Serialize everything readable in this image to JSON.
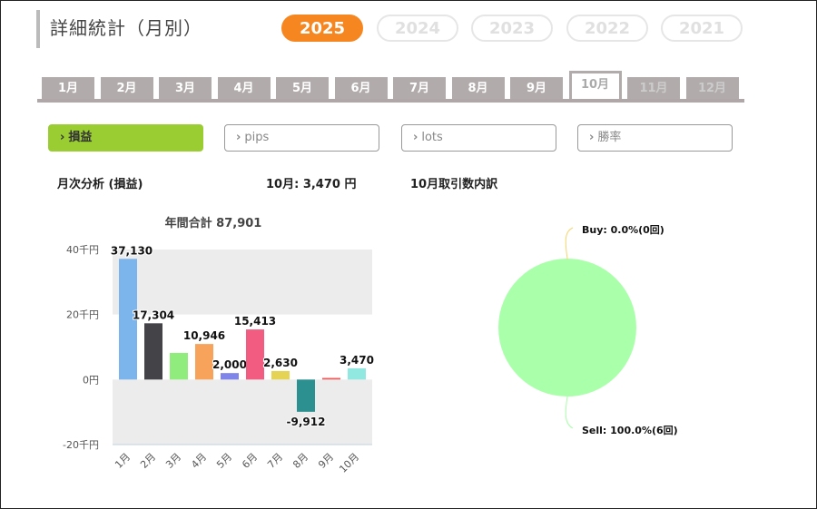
{
  "page": {
    "title": "詳細統計（月別）",
    "years": [
      {
        "label": "2025",
        "active": true
      },
      {
        "label": "2024",
        "active": false
      },
      {
        "label": "2023",
        "active": false
      },
      {
        "label": "2022",
        "active": false
      },
      {
        "label": "2021",
        "active": false
      }
    ],
    "months": [
      {
        "label": "1月",
        "state": "normal"
      },
      {
        "label": "2月",
        "state": "normal"
      },
      {
        "label": "3月",
        "state": "normal"
      },
      {
        "label": "4月",
        "state": "normal"
      },
      {
        "label": "5月",
        "state": "normal"
      },
      {
        "label": "6月",
        "state": "normal"
      },
      {
        "label": "7月",
        "state": "normal"
      },
      {
        "label": "8月",
        "state": "normal"
      },
      {
        "label": "9月",
        "state": "normal"
      },
      {
        "label": "10月",
        "state": "active"
      },
      {
        "label": "11月",
        "state": "disabled"
      },
      {
        "label": "12月",
        "state": "disabled"
      }
    ],
    "modes": [
      {
        "label": "損益",
        "active": true
      },
      {
        "label": "pips",
        "active": false
      },
      {
        "label": "lots",
        "active": false
      },
      {
        "label": "勝率",
        "active": false
      }
    ],
    "chevron": "›",
    "section_title": "月次分析 (損益)",
    "month_total": "10月:  3,470 円",
    "breakdown_title": "10月取引数内訳",
    "colors": {
      "accent": "#f6861f",
      "mode_active": "#9acd32",
      "tab": "#b2abab"
    }
  },
  "chart_data": [
    {
      "type": "bar",
      "title": "年間合計 87,901",
      "categories": [
        "1月",
        "2月",
        "3月",
        "4月",
        "5月",
        "6月",
        "7月",
        "8月",
        "9月",
        "10月"
      ],
      "values": [
        37130,
        17304,
        8200,
        10946,
        2000,
        15413,
        2630,
        -9912,
        500,
        3470
      ],
      "data_labels": [
        "37,130",
        "17,304",
        "",
        "10,946",
        "2,000",
        "15,413",
        "2,630",
        "-9,912",
        "",
        "3,470"
      ],
      "colors": [
        "#7cb5ec",
        "#434348",
        "#90ed7d",
        "#f7a35c",
        "#8085e9",
        "#f15c80",
        "#e4d354",
        "#2b908f",
        "#f45b5b",
        "#91e8e1"
      ],
      "yticks": [
        {
          "value": 40000,
          "label": "40千円"
        },
        {
          "value": 20000,
          "label": "20千円"
        },
        {
          "value": 0,
          "label": "0円"
        },
        {
          "value": -20000,
          "label": "-20千円"
        }
      ],
      "ylim": [
        -20000,
        40000
      ],
      "xlabel": "",
      "ylabel": ""
    },
    {
      "type": "pie",
      "title": "",
      "slices": [
        {
          "label": "Buy: 0.0%(0回)",
          "value": 0,
          "color": "#f7d46b"
        },
        {
          "label": "Sell: 100.0%(6回)",
          "value": 100,
          "color": "#aaffaa"
        }
      ]
    }
  ]
}
